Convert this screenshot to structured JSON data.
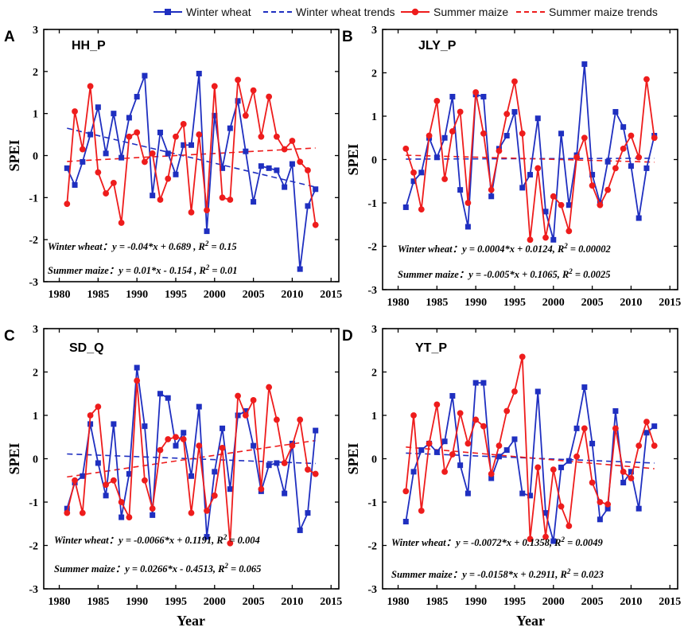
{
  "colors": {
    "wheat": "#1f2fc0",
    "maize": "#ee1c1c"
  },
  "legend": [
    {
      "label": "Winter wheat",
      "series": "wheat",
      "style": "solid-square"
    },
    {
      "label": "Winter wheat trends",
      "series": "wheat",
      "style": "dashed"
    },
    {
      "label": "Summer maize",
      "series": "maize",
      "style": "solid-circle"
    },
    {
      "label": "Summer maize trends",
      "series": "maize",
      "style": "dashed"
    }
  ],
  "xlabel": "Year",
  "chart_data": [
    {
      "type": "line",
      "panel": "A",
      "title": "HH_P",
      "xlabel": "",
      "ylabel": "SPEI",
      "xlim": [
        1978,
        2016
      ],
      "ylim": [
        -3,
        3
      ],
      "xticks": [
        1980,
        1985,
        1990,
        1995,
        2000,
        2005,
        2010,
        2015
      ],
      "yticks": [
        -3,
        -2,
        -1,
        0,
        1,
        2,
        3
      ],
      "x": [
        1981,
        1982,
        1983,
        1984,
        1985,
        1986,
        1987,
        1988,
        1989,
        1990,
        1991,
        1992,
        1993,
        1994,
        1995,
        1996,
        1997,
        1998,
        1999,
        2000,
        2001,
        2002,
        2003,
        2004,
        2005,
        2006,
        2007,
        2008,
        2009,
        2010,
        2011,
        2012,
        2013
      ],
      "series": [
        {
          "name": "Winter wheat",
          "values": [
            -0.3,
            -0.7,
            -0.15,
            0.5,
            1.15,
            0.05,
            1.0,
            -0.05,
            0.9,
            1.4,
            1.9,
            -0.95,
            0.55,
            0.05,
            -0.45,
            0.25,
            0.25,
            1.95,
            -1.8,
            0.95,
            -0.3,
            0.65,
            1.3,
            0.1,
            -1.1,
            -0.25,
            -0.3,
            -0.35,
            -0.75,
            -0.2,
            -2.7,
            -1.2,
            -0.8
          ]
        },
        {
          "name": "Summer maize",
          "values": [
            -1.15,
            1.05,
            0.15,
            1.65,
            -0.4,
            -0.9,
            -0.65,
            -1.6,
            0.45,
            0.55,
            -0.15,
            0.05,
            -1.05,
            -0.55,
            0.45,
            0.75,
            -1.35,
            0.5,
            -1.3,
            1.65,
            -1.0,
            -1.05,
            1.8,
            0.95,
            1.55,
            0.45,
            1.4,
            0.45,
            0.15,
            0.35,
            -0.15,
            -0.35,
            -1.65
          ]
        }
      ],
      "trends": [
        {
          "name": "Winter wheat trends",
          "start": [
            1981,
            0.65
          ],
          "end": [
            2013,
            -0.75
          ]
        },
        {
          "name": "Summer maize trends",
          "start": [
            1981,
            -0.14
          ],
          "end": [
            2013,
            0.18
          ]
        }
      ],
      "equations": [
        "Winter wheat：y = -0.04*x + 0.689 , R2 = 0.15",
        "Summer maize：y =  0.01*x  - 0.154 , R2 = 0.01"
      ]
    },
    {
      "type": "line",
      "panel": "B",
      "title": "JLY_P",
      "xlabel": "",
      "ylabel": "SPEI",
      "xlim": [
        1978,
        2016
      ],
      "ylim": [
        -3,
        3
      ],
      "xticks": [
        1980,
        1985,
        1990,
        1995,
        2000,
        2005,
        2010,
        2015
      ],
      "yticks": [
        -3,
        -2,
        -1,
        0,
        1,
        2,
        3
      ],
      "x": [
        1981,
        1982,
        1983,
        1984,
        1985,
        1986,
        1987,
        1988,
        1989,
        1990,
        1991,
        1992,
        1993,
        1994,
        1995,
        1996,
        1997,
        1998,
        1999,
        2000,
        2001,
        2002,
        2003,
        2004,
        2005,
        2006,
        2007,
        2008,
        2009,
        2010,
        2011,
        2012,
        2013
      ],
      "series": [
        {
          "name": "Winter wheat",
          "values": [
            -1.1,
            -0.5,
            -0.3,
            0.5,
            0.05,
            0.5,
            1.45,
            -0.7,
            -1.55,
            1.5,
            1.45,
            -0.85,
            0.25,
            0.55,
            1.1,
            -0.65,
            -0.35,
            0.95,
            -1.2,
            -1.85,
            0.6,
            -1.05,
            0.1,
            2.2,
            -0.35,
            -1.0,
            -0.05,
            1.1,
            0.75,
            -0.15,
            -1.35,
            -0.2,
            0.55
          ]
        },
        {
          "name": "Summer maize",
          "values": [
            0.25,
            -0.3,
            -1.15,
            0.55,
            1.35,
            -0.45,
            0.65,
            1.1,
            -1.0,
            1.55,
            0.6,
            -0.7,
            0.2,
            1.05,
            1.8,
            0.6,
            -1.85,
            -0.2,
            -1.8,
            -0.85,
            -1.05,
            -1.65,
            0.05,
            0.5,
            -0.6,
            -1.05,
            -0.7,
            -0.2,
            0.25,
            0.55,
            0.05,
            1.85,
            0.5
          ]
        }
      ],
      "trends": [
        {
          "name": "Winter wheat trends",
          "start": [
            1981,
            0.01
          ],
          "end": [
            2013,
            0.03
          ]
        },
        {
          "name": "Summer maize trends",
          "start": [
            1981,
            0.1
          ],
          "end": [
            2013,
            -0.06
          ]
        }
      ],
      "equations": [
        "Winter wheat：y = 0.0004*x + 0.0124, R2 = 0.00002",
        "Summer maize：y = -0.005*x + 0.1065, R2 = 0.0025"
      ]
    },
    {
      "type": "line",
      "panel": "C",
      "title": "SD_Q",
      "xlabel": "Year",
      "ylabel": "SPEI",
      "xlim": [
        1978,
        2016
      ],
      "ylim": [
        -3,
        3
      ],
      "xticks": [
        1980,
        1985,
        1990,
        1995,
        2000,
        2005,
        2010,
        2015
      ],
      "yticks": [
        -3,
        -2,
        -1,
        0,
        1,
        2,
        3
      ],
      "x": [
        1981,
        1982,
        1983,
        1984,
        1985,
        1986,
        1987,
        1988,
        1989,
        1990,
        1991,
        1992,
        1993,
        1994,
        1995,
        1996,
        1997,
        1998,
        1999,
        2000,
        2001,
        2002,
        2003,
        2004,
        2005,
        2006,
        2007,
        2008,
        2009,
        2010,
        2011,
        2012,
        2013
      ],
      "series": [
        {
          "name": "Winter wheat",
          "values": [
            -1.15,
            -0.55,
            -0.4,
            0.8,
            -0.1,
            -0.85,
            0.8,
            -1.35,
            -0.35,
            2.1,
            0.75,
            -1.3,
            1.5,
            1.4,
            0.3,
            0.6,
            -0.4,
            1.2,
            -1.8,
            -0.3,
            0.7,
            -0.7,
            1.0,
            1.1,
            0.3,
            -0.75,
            -0.15,
            -0.1,
            -0.8,
            0.35,
            -1.65,
            -1.25,
            0.65
          ]
        },
        {
          "name": "Summer maize",
          "values": [
            -1.25,
            -0.5,
            -1.25,
            1.0,
            1.2,
            -0.6,
            -0.5,
            -1.0,
            -1.35,
            1.8,
            -0.5,
            -1.15,
            0.2,
            0.45,
            0.5,
            0.45,
            -1.25,
            0.3,
            -1.2,
            -0.85,
            0.25,
            -1.95,
            1.45,
            1.0,
            1.35,
            -0.7,
            1.65,
            0.9,
            -0.1,
            0.3,
            0.9,
            -0.25,
            -0.35
          ]
        }
      ],
      "trends": [
        {
          "name": "Winter wheat trends",
          "start": [
            1981,
            0.11
          ],
          "end": [
            2013,
            -0.11
          ]
        },
        {
          "name": "Summer maize trends",
          "start": [
            1981,
            -0.42
          ],
          "end": [
            2013,
            0.42
          ]
        }
      ],
      "equations": [
        "Winter wheat：y = -0.0066*x + 0.1191, R2 = 0.004",
        "Summer maize：y = 0.0266*x - 0.4513, R2 = 0.065"
      ]
    },
    {
      "type": "line",
      "panel": "D",
      "title": "YT_P",
      "xlabel": "Year",
      "ylabel": "SPEI",
      "xlim": [
        1978,
        2016
      ],
      "ylim": [
        -3,
        3
      ],
      "xticks": [
        1980,
        1985,
        1990,
        1995,
        2000,
        2005,
        2010,
        2015
      ],
      "yticks": [
        -3,
        -2,
        -1,
        0,
        1,
        2,
        3
      ],
      "x": [
        1981,
        1982,
        1983,
        1984,
        1985,
        1986,
        1987,
        1988,
        1989,
        1990,
        1991,
        1992,
        1993,
        1994,
        1995,
        1996,
        1997,
        1998,
        1999,
        2000,
        2001,
        2002,
        2003,
        2004,
        2005,
        2006,
        2007,
        2008,
        2009,
        2010,
        2011,
        2012,
        2013
      ],
      "series": [
        {
          "name": "Winter wheat",
          "values": [
            -1.45,
            -0.3,
            0.2,
            0.35,
            0.15,
            0.4,
            1.45,
            -0.15,
            -0.8,
            1.75,
            1.75,
            -0.45,
            0.05,
            0.2,
            0.45,
            -0.8,
            -0.85,
            1.55,
            -1.25,
            -1.9,
            -0.2,
            -0.05,
            0.7,
            1.65,
            0.35,
            -1.4,
            -1.15,
            1.1,
            -0.55,
            -0.3,
            -1.15,
            0.6,
            0.75
          ]
        },
        {
          "name": "Summer maize",
          "values": [
            -0.75,
            1.0,
            -1.2,
            0.35,
            1.25,
            -0.3,
            0.1,
            1.05,
            0.35,
            0.9,
            0.75,
            -0.35,
            0.3,
            1.1,
            1.55,
            2.35,
            -1.85,
            -0.2,
            -1.8,
            -0.25,
            -1.1,
            -1.55,
            0.05,
            0.7,
            -0.55,
            -1.0,
            -1.05,
            0.7,
            -0.3,
            -0.45,
            0.3,
            0.85,
            0.3
          ]
        }
      ],
      "trends": [
        {
          "name": "Winter wheat trends",
          "start": [
            1981,
            0.13
          ],
          "end": [
            2013,
            -0.1
          ]
        },
        {
          "name": "Summer maize trends",
          "start": [
            1981,
            0.27
          ],
          "end": [
            2013,
            -0.23
          ]
        }
      ],
      "equations": [
        "Winter wheat：y = -0.0072*x + 0.1358, R2 = 0.0049",
        "Summer maize：y =  -0.0158*x + 0.2911, R2 = 0.023"
      ]
    }
  ]
}
